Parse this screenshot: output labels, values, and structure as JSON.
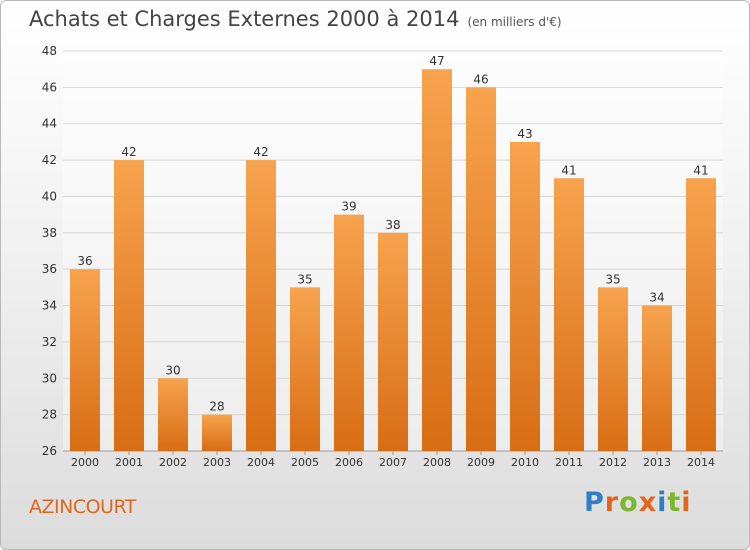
{
  "header": {
    "title": "Achats et Charges Externes 2000 à 2014",
    "subtitle": "(en milliers d'€)"
  },
  "location": "AZINCOURT",
  "logo": {
    "text": "Proxiti",
    "letters": [
      {
        "ch": "P",
        "color": "#2f7fc8"
      },
      {
        "ch": "r",
        "color": "#e2661c"
      },
      {
        "ch": "o",
        "color": "#7cb82f"
      },
      {
        "ch": "x",
        "color": "#e2661c"
      },
      {
        "ch": "i",
        "color": "#2f7fc8"
      },
      {
        "ch": "t",
        "color": "#7cb82f"
      },
      {
        "ch": "i",
        "color": "#e2661c"
      }
    ]
  },
  "colors": {
    "bar_top": "#f7a34e",
    "bar_bottom": "#d86d14",
    "grid": "#d7d7d7",
    "axis_text": "#333333"
  },
  "chart_data": {
    "type": "bar",
    "title": "Achats et Charges Externes 2000 à 2014",
    "subtitle": "(en milliers d'€)",
    "categories": [
      "2000",
      "2001",
      "2002",
      "2003",
      "2004",
      "2005",
      "2006",
      "2007",
      "2008",
      "2009",
      "2010",
      "2011",
      "2012",
      "2013",
      "2014"
    ],
    "values": [
      36,
      42,
      30,
      28,
      42,
      35,
      39,
      38,
      47,
      46,
      43,
      41,
      35,
      34,
      41
    ],
    "ylim": [
      26,
      48
    ],
    "yticks": [
      26,
      28,
      30,
      32,
      34,
      36,
      38,
      40,
      42,
      44,
      46,
      48
    ],
    "grid": true,
    "data_labels": true
  }
}
